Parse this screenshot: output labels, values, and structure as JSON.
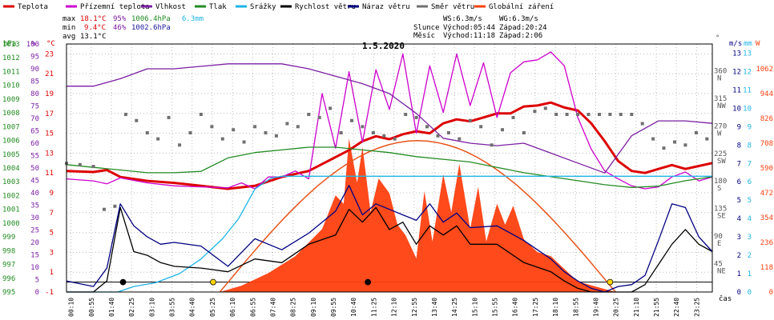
{
  "title": "1.5.2020",
  "legend": [
    {
      "label": "Teplota",
      "color": "#dd0000",
      "icon": "line-swatch"
    },
    {
      "label": "Přízemní teplota",
      "color": "#cc00cc",
      "icon": "line-swatch"
    },
    {
      "label": "Vlhkost",
      "color": "#7a1fa2",
      "icon": "line-swatch"
    },
    {
      "label": "Tlak",
      "color": "#228b22",
      "icon": "line-swatch"
    },
    {
      "label": "Srážky",
      "color": "#1eb4e6",
      "icon": "line-swatch"
    },
    {
      "label": "Rychlost větru",
      "color": "#000000",
      "icon": "line-swatch"
    },
    {
      "label": "Náraz větru",
      "color": "#000080",
      "icon": "line-swatch"
    },
    {
      "label": "Směr větru",
      "color": "#707070",
      "icon": "line-swatch"
    },
    {
      "label": "Globální záření",
      "color": "#ff4010",
      "icon": "line-swatch"
    }
  ],
  "stats": {
    "max": {
      "label": "max",
      "temp": "18.1°C",
      "hum": "95%",
      "press": "1006.4hPa",
      "rain": "6.3mm"
    },
    "min": {
      "label": "min",
      "temp": "9.4°C",
      "hum": "46%",
      "press": "1002.6hPa"
    },
    "avg": {
      "label": "avg",
      "temp": "13.1°C"
    }
  },
  "info": {
    "ws": "WS:6.3m/s",
    "wg": "WG:6.3m/s",
    "slunce_label": "Slunce",
    "slunce_rise": "Východ:05:44",
    "slunce_set": "Západ:20:24",
    "mesic_label": "Měsíc",
    "mesic_rise": "Východ:11:18",
    "mesic_set": "Západ:2:06"
  },
  "axes": {
    "hpa_unit": "hPa",
    "pct_unit": "%",
    "c_unit": "°C",
    "ms_unit": "m/s",
    "mm_unit": "mm",
    "w_unit": "W",
    "dir_unit": "°",
    "time_unit": "čas",
    "hpa_ticks": [
      "1013",
      "1012",
      "1011",
      "1010",
      "1009",
      "1008",
      "1007",
      "1006",
      "1005",
      "1004",
      "1003",
      "1002",
      "1001",
      "1000",
      "999",
      "998",
      "997",
      "996",
      "995"
    ],
    "pct_ticks": [
      "100",
      "95",
      "90",
      "85",
      "80",
      "75",
      "70",
      "65",
      "60",
      "55",
      "50",
      "45",
      "40",
      "35",
      "30",
      "25",
      "20",
      "15",
      "10",
      "5",
      "0"
    ],
    "c_ticks": [
      "23",
      "21",
      "19",
      "17",
      "15",
      "13",
      "11",
      "9",
      "7",
      "5",
      "3",
      "1",
      "-1"
    ],
    "dir_ticks": [
      {
        "deg": "360",
        "name": "N"
      },
      {
        "deg": "315",
        "name": "NW"
      },
      {
        "deg": "270",
        "name": "W"
      },
      {
        "deg": "225",
        "name": "SW"
      },
      {
        "deg": "180",
        "name": "S"
      },
      {
        "deg": "135",
        "name": "SE"
      },
      {
        "deg": "90",
        "name": "E"
      },
      {
        "deg": "45",
        "name": "NE"
      }
    ],
    "ms_ticks": [
      "13",
      "12",
      "11",
      "10",
      "9",
      "8",
      "7",
      "6",
      "5",
      "4",
      "3",
      "2",
      "1",
      "0"
    ],
    "mm_ticks": [
      "13",
      "12",
      "11",
      "10",
      "9",
      "8",
      "7",
      "6",
      "5",
      "4",
      "3",
      "2",
      "1",
      "0"
    ],
    "w_ticks": [
      "1062",
      "944",
      "826",
      "708",
      "590",
      "472",
      "354",
      "236",
      "118",
      "0"
    ],
    "time_ticks": [
      "00:10",
      "00:55",
      "01:40",
      "02:25",
      "03:10",
      "03:55",
      "04:40",
      "05:25",
      "06:10",
      "06:55",
      "07:40",
      "08:25",
      "09:10",
      "09:55",
      "10:40",
      "11:25",
      "12:10",
      "12:55",
      "13:40",
      "14:25",
      "15:10",
      "15:55",
      "16:40",
      "17:25",
      "18:10",
      "18:55",
      "19:40",
      "20:25",
      "21:10",
      "21:55",
      "22:40",
      "23:25"
    ]
  },
  "chart_data": {
    "type": "line",
    "x_unit": "hours",
    "xlim": [
      0,
      24
    ],
    "series": [
      {
        "name": "Teplota",
        "unit": "°C",
        "color": "#dd0000",
        "x": [
          0,
          1,
          1.5,
          2,
          3,
          4,
          5,
          6,
          7,
          8,
          9,
          10,
          10.5,
          11,
          11.5,
          12,
          12.5,
          13,
          13.5,
          14,
          14.5,
          15,
          15.5,
          16,
          16.5,
          17,
          17.5,
          18,
          18.5,
          19,
          19.5,
          20,
          20.5,
          21,
          21.5,
          22,
          22.5,
          23,
          23.5,
          24
        ],
        "y": [
          11.2,
          11.1,
          11.3,
          10.6,
          10.2,
          10.0,
          9.7,
          9.4,
          9.7,
          10.6,
          11.2,
          12.6,
          13.3,
          14.2,
          14.7,
          14.4,
          14.9,
          15.2,
          15.0,
          16.0,
          16.4,
          16.2,
          16.6,
          17.0,
          17.0,
          17.7,
          17.8,
          18.1,
          17.6,
          17.3,
          16.0,
          14.2,
          12.2,
          11.2,
          11.0,
          11.4,
          11.8,
          11.4,
          11.7,
          12.0
        ]
      },
      {
        "name": "Přízemní teplota",
        "unit": "°C",
        "color": "#cc00cc",
        "x": [
          0,
          1,
          1.5,
          2,
          3,
          4,
          5,
          6,
          6.5,
          7,
          7.5,
          8,
          8.5,
          9,
          9.5,
          10,
          10.5,
          11,
          11.5,
          12,
          12.5,
          13,
          13.5,
          14,
          14.5,
          15,
          15.5,
          16,
          16.5,
          17,
          17.5,
          18,
          18.5,
          19,
          19.5,
          20,
          20.5,
          21,
          21.5,
          22,
          22.5,
          23,
          23.5,
          24
        ],
        "y": [
          10.4,
          10.2,
          9.9,
          10.5,
          10.0,
          9.7,
          9.6,
          9.5,
          10.0,
          9.4,
          10.6,
          10.6,
          11.2,
          10.4,
          19.0,
          13.5,
          21.2,
          14.1,
          21.4,
          17.4,
          23.0,
          15.0,
          21.8,
          17.1,
          23.0,
          17.8,
          22.1,
          16.6,
          21.1,
          22.2,
          22.4,
          23.2,
          21.8,
          16.6,
          13.4,
          11.2,
          10.4,
          9.7,
          9.4,
          9.6,
          10.6,
          11.1,
          10.2,
          10.6
        ]
      },
      {
        "name": "Vlhkost",
        "unit": "%",
        "color": "#7a1fa2",
        "x": [
          0,
          1,
          2,
          3,
          4,
          5,
          6,
          7,
          8,
          9,
          10,
          11,
          12,
          13,
          14,
          15,
          16,
          17,
          18,
          19,
          20,
          21,
          22,
          23,
          24
        ],
        "y": [
          83,
          83,
          86,
          90,
          90,
          91,
          92,
          92,
          92,
          90,
          87,
          84,
          80,
          72,
          62,
          60,
          59,
          60,
          56,
          52,
          48,
          63,
          69,
          69,
          68
        ]
      },
      {
        "name": "Tlak",
        "unit": "hPa",
        "color": "#228b22",
        "x": [
          0,
          1,
          2,
          3,
          4,
          5,
          6,
          7,
          8,
          9,
          10,
          11,
          12,
          13,
          14,
          15,
          16,
          17,
          18,
          19,
          20,
          21,
          22,
          23,
          24
        ],
        "y": [
          1004.5,
          1004.3,
          1004.1,
          1003.9,
          1003.9,
          1004.0,
          1005.0,
          1005.4,
          1005.6,
          1005.8,
          1005.8,
          1005.6,
          1005.4,
          1005.1,
          1004.9,
          1004.7,
          1004.3,
          1003.9,
          1003.6,
          1003.3,
          1003.0,
          1002.8,
          1002.9,
          1003.3,
          1003.6
        ]
      },
      {
        "name": "Srážky",
        "unit": "mm",
        "color": "#1eb4e6",
        "x": [
          0,
          1.9,
          2.5,
          3.3,
          4.2,
          5.0,
          5.8,
          6.4,
          7.0,
          7.6,
          8.0,
          24
        ],
        "y": [
          0,
          0,
          0.3,
          0.5,
          1.0,
          1.8,
          2.9,
          4.0,
          5.6,
          6.2,
          6.3,
          6.3
        ]
      },
      {
        "name": "Rychlost větru",
        "unit": "m/s",
        "color": "#000000",
        "x": [
          0,
          1,
          1.5,
          2,
          2.5,
          3,
          3.5,
          4,
          5,
          6,
          7,
          8,
          9,
          10,
          10.5,
          11,
          11.5,
          12,
          12.5,
          13,
          13.5,
          14,
          14.5,
          15,
          16,
          17,
          18,
          18.5,
          19,
          19.5,
          20,
          20.5,
          21,
          21.5,
          22,
          22.5,
          23,
          23.5,
          24
        ],
        "y": [
          0,
          0,
          0.6,
          4.6,
          2.2,
          2.0,
          1.6,
          1.4,
          1.3,
          1.1,
          1.8,
          1.6,
          2.6,
          3.1,
          4.5,
          3.8,
          4.6,
          3.4,
          3.8,
          2.6,
          3.6,
          3.1,
          3.6,
          2.6,
          2.6,
          1.6,
          1.1,
          0.6,
          0.2,
          0,
          0,
          0,
          0,
          0.4,
          1.5,
          2.6,
          3.4,
          2.6,
          2.2
        ]
      },
      {
        "name": "Náraz větru",
        "unit": "m/s",
        "color": "#000080",
        "x": [
          0,
          1,
          1.5,
          2,
          2.5,
          3,
          3.5,
          4,
          5,
          6,
          7,
          8,
          9,
          10,
          10.5,
          11,
          11.5,
          12,
          12.5,
          13,
          13.5,
          14,
          14.5,
          15,
          16,
          17,
          18,
          18.5,
          19,
          19.5,
          20,
          20.5,
          21,
          21.5,
          22,
          22.5,
          23,
          23.5,
          24
        ],
        "y": [
          0.6,
          0.3,
          1.3,
          4.8,
          3.6,
          3.0,
          2.6,
          2.7,
          2.5,
          1.4,
          2.9,
          2.3,
          3.2,
          4.4,
          5.8,
          4.2,
          4.8,
          4.5,
          4.2,
          3.9,
          4.8,
          3.8,
          4.3,
          3.5,
          3.6,
          2.8,
          1.8,
          1.1,
          0.6,
          0.2,
          0,
          0.3,
          0.4,
          0.9,
          2.8,
          4.8,
          4.6,
          3.0,
          2.2
        ]
      },
      {
        "name": "Směr větru",
        "unit": "°",
        "color": "#707070",
        "x": [
          0,
          0.5,
          1,
          1.4,
          1.8,
          2.2,
          2.6,
          3,
          3.4,
          3.8,
          4.2,
          4.6,
          5,
          5.4,
          5.8,
          6.2,
          6.6,
          7,
          7.4,
          7.8,
          8.2,
          8.6,
          9,
          9.4,
          9.8,
          10.2,
          10.6,
          11,
          11.4,
          11.8,
          12.2,
          12.6,
          13,
          13.4,
          13.8,
          14.2,
          14.6,
          15,
          15.4,
          15.8,
          16.2,
          16.6,
          17,
          17.4,
          17.8,
          18.2,
          18.6,
          19,
          19.4,
          19.8,
          20.2,
          20.6,
          21,
          21.4,
          21.8,
          22.2,
          22.6,
          23,
          23.4,
          23.8
        ],
        "y": [
          210,
          208,
          205,
          135,
          140,
          290,
          280,
          260,
          250,
          285,
          240,
          260,
          290,
          270,
          250,
          265,
          245,
          270,
          260,
          255,
          275,
          270,
          290,
          285,
          300,
          260,
          280,
          270,
          260,
          255,
          250,
          290,
          285,
          270,
          255,
          260,
          250,
          280,
          270,
          240,
          265,
          285,
          260,
          295,
          300,
          290,
          290,
          290,
          290,
          290,
          290,
          290,
          290,
          275,
          250,
          235,
          245,
          240,
          260,
          250
        ]
      },
      {
        "name": "Globální záření",
        "unit": "W",
        "color": "#ff4010",
        "x": [
          0,
          5.7,
          6.5,
          7.5,
          8.5,
          9.5,
          10,
          10.3,
          10.5,
          10.8,
          11,
          11.3,
          11.6,
          12,
          12.3,
          12.6,
          13,
          13.3,
          13.6,
          14,
          14.3,
          14.6,
          15,
          15.3,
          15.6,
          16,
          16.3,
          16.6,
          17,
          17.5,
          18,
          18.5,
          19,
          20.4,
          24
        ],
        "y": [
          0,
          0,
          30,
          90,
          170,
          300,
          460,
          420,
          730,
          520,
          690,
          380,
          540,
          470,
          320,
          270,
          160,
          480,
          240,
          560,
          380,
          610,
          300,
          500,
          240,
          420,
          320,
          410,
          250,
          190,
          170,
          110,
          50,
          0,
          0
        ]
      }
    ],
    "clear_sky_radiation": {
      "x": [
        5.7,
        13,
        20.4
      ],
      "peak": 720
    },
    "markers": [
      {
        "x": 2.1,
        "y": 0,
        "color": "#000000"
      },
      {
        "x": 5.45,
        "y": 0,
        "color": "#ffd700"
      },
      {
        "x": 11.2,
        "y": 0,
        "color": "#000000"
      },
      {
        "x": 20.2,
        "y": 0,
        "color": "#ffd700"
      }
    ],
    "ylim": {
      "temp": [
        -1,
        24
      ],
      "hum": [
        0,
        100
      ],
      "press": [
        995,
        1013.5
      ],
      "wind": [
        0,
        13.5
      ],
      "rain": [
        0,
        13.5
      ],
      "dir": [
        0,
        405
      ],
      "rad": [
        0,
        1180
      ]
    }
  }
}
